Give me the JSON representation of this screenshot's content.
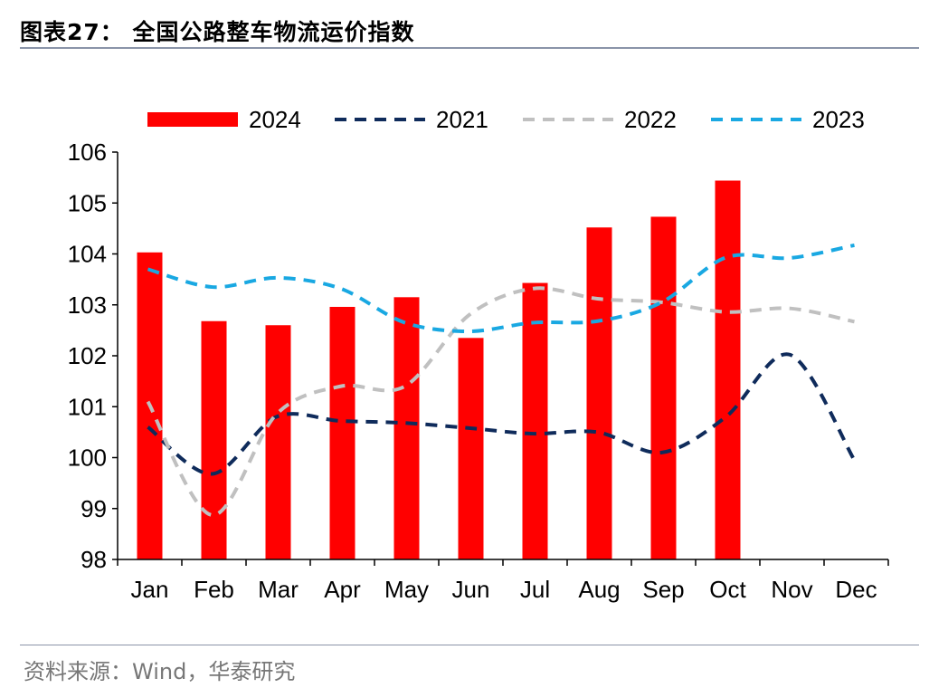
{
  "header": {
    "title": "图表27：  全国公路整车物流运价指数"
  },
  "footer": {
    "source": "资料来源：Wind，华泰研究"
  },
  "chart_data": {
    "type": "bar",
    "categories": [
      "Jan",
      "Feb",
      "Mar",
      "Apr",
      "May",
      "Jun",
      "Jul",
      "Aug",
      "Sep",
      "Oct",
      "Nov",
      "Dec"
    ],
    "ylim": [
      98,
      106
    ],
    "yticks": [
      98,
      99,
      100,
      101,
      102,
      103,
      104,
      105,
      106
    ],
    "legend_position": "top",
    "grid": false,
    "series": [
      {
        "name": "2024",
        "kind": "bar",
        "color": "#ff0000",
        "values": [
          104.03,
          102.68,
          102.6,
          102.96,
          103.15,
          102.35,
          103.43,
          104.52,
          104.73,
          105.44,
          null,
          null
        ]
      },
      {
        "name": "2021",
        "kind": "line",
        "style": "dashed",
        "color": "#0f2b5b",
        "values": [
          100.6,
          99.68,
          100.8,
          100.72,
          100.68,
          100.58,
          100.47,
          100.5,
          100.1,
          100.8,
          102.02,
          99.95
        ]
      },
      {
        "name": "2022",
        "kind": "line",
        "style": "dashed",
        "color": "#c0c0c0",
        "values": [
          101.1,
          98.87,
          100.85,
          101.4,
          101.4,
          102.8,
          103.32,
          103.12,
          103.05,
          102.86,
          102.93,
          102.67
        ]
      },
      {
        "name": "2023",
        "kind": "line",
        "style": "dashed",
        "color": "#19a8e2",
        "values": [
          103.7,
          103.35,
          103.53,
          103.32,
          102.65,
          102.48,
          102.65,
          102.68,
          103.05,
          103.93,
          103.92,
          104.17
        ]
      }
    ]
  }
}
